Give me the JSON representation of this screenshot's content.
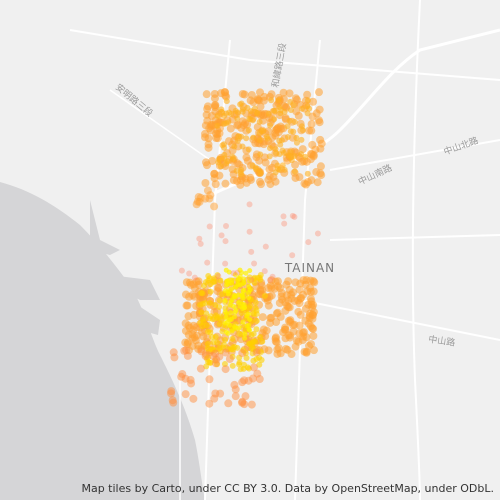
{
  "map": {
    "city_label": "TAINAN",
    "street_labels": [
      "中山北路",
      "中山南路",
      "中山路",
      "安明路三段",
      "和緯路三段"
    ],
    "attribution": "Map tiles by Carto, under CC BY 3.0. Data by OpenStreetMap, under ODbL."
  }
}
